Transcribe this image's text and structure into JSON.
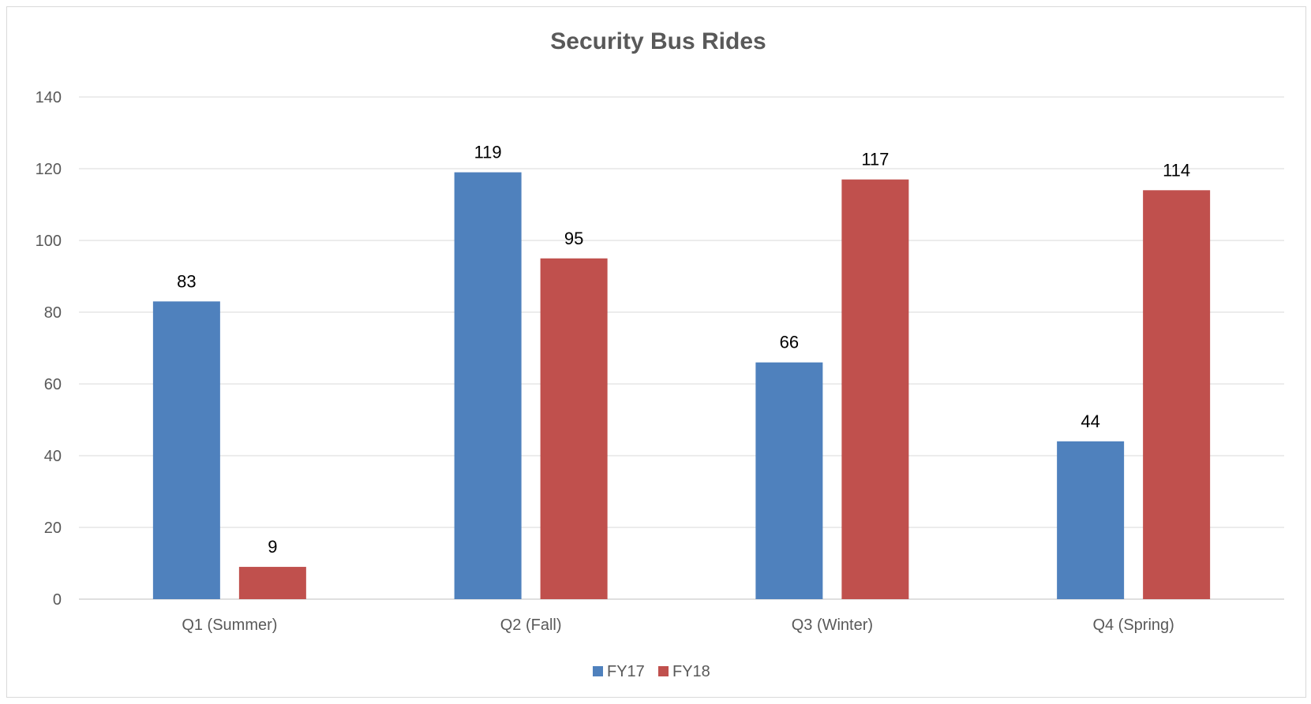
{
  "chart_data": {
    "type": "bar",
    "title": "Security Bus Rides",
    "categories": [
      "Q1 (Summer)",
      "Q2 (Fall)",
      "Q3 (Winter)",
      "Q4 (Spring)"
    ],
    "series": [
      {
        "name": "FY17",
        "values": [
          83,
          119,
          66,
          44
        ],
        "color": "#4f81bd"
      },
      {
        "name": "FY18",
        "values": [
          9,
          95,
          117,
          114
        ],
        "color": "#c0504d"
      }
    ],
    "ylim": [
      0,
      140
    ],
    "yticks": [
      0,
      20,
      40,
      60,
      80,
      100,
      120,
      140
    ],
    "grid": true,
    "legend": "bottom-center",
    "data_labels": true
  }
}
